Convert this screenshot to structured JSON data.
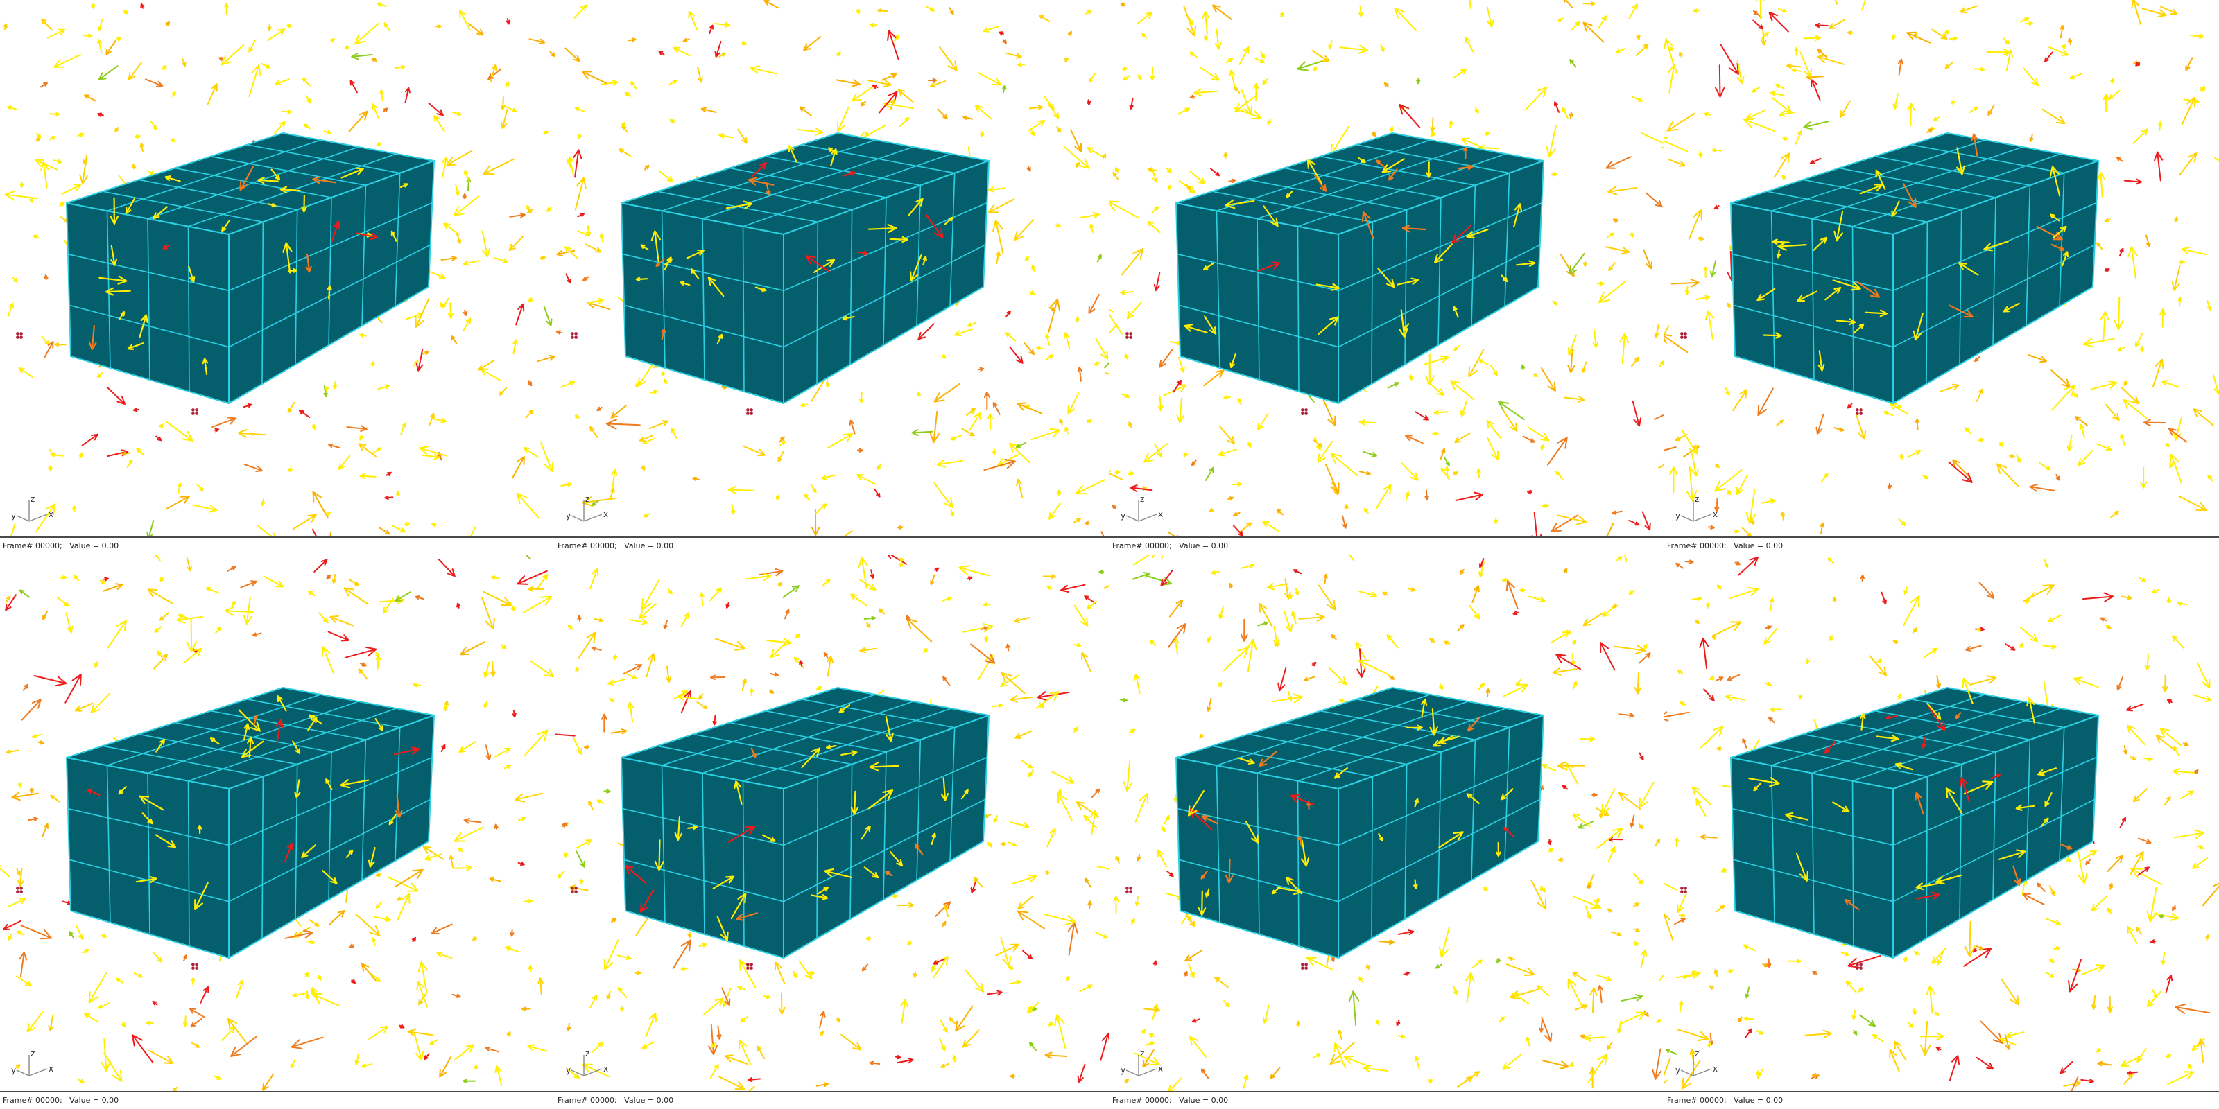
{
  "viewports": [
    {
      "frame_label": "Frame# 00000;   Value = 0.00"
    },
    {
      "frame_label": "Frame# 00000;   Value = 0.00"
    },
    {
      "frame_label": "Frame# 00000;   Value = 0.00"
    },
    {
      "frame_label": "Frame# 00000;   Value = 0.00"
    },
    {
      "frame_label": "Frame# 00000;   Value = 0.00"
    },
    {
      "frame_label": "Frame# 00000;   Value = 0.00"
    },
    {
      "frame_label": "Frame# 00000;   Value = 0.00"
    },
    {
      "frame_label": "Frame# 00000;   Value = 0.00"
    }
  ],
  "axis_triad": {
    "x_label": "x",
    "y_label": "y",
    "z_label": "z"
  },
  "colors": {
    "box_fill": "#045e6c",
    "box_edges": "#2bd1e3",
    "vector_colors": [
      "#ffee00",
      "#ffd200",
      "#fbb000",
      "#f07a1e",
      "#ee1b1b",
      "#8ccc1a"
    ],
    "node_marker": "#b0213a",
    "status_border": "#4a4a4a"
  },
  "icons": {
    "node_marker": "node-marker-icon",
    "axis_triad": "axis-triad-icon"
  }
}
